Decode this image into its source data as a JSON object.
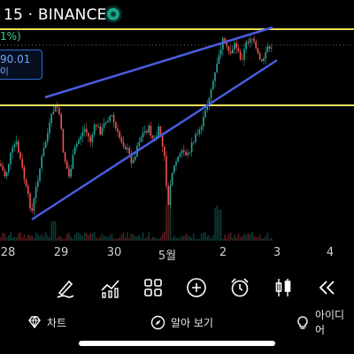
{
  "header": {
    "title": "15 · BINANCE",
    "change_pct": "1%)",
    "price": "90.01",
    "price_sub": "0|",
    "status_color": "#17a589"
  },
  "chart_data": {
    "type": "candlestick",
    "title": "",
    "x_ticks": [
      "28",
      "29",
      "30",
      "5월",
      "2",
      "3",
      "4"
    ],
    "horizontal_levels_color": "#e8e25a",
    "trendline_color": "#4a5de0",
    "grid": false,
    "volume_pane": true
  },
  "toolbar": {
    "tools": [
      "draw-icon",
      "indicators-icon",
      "layout-grid-icon",
      "add-icon",
      "alarm-icon",
      "candles-icon",
      "rewind-icon"
    ]
  },
  "nav": {
    "chart_label": "차트",
    "explore_label": "알아 보기",
    "ideas_label": "아이디어"
  }
}
